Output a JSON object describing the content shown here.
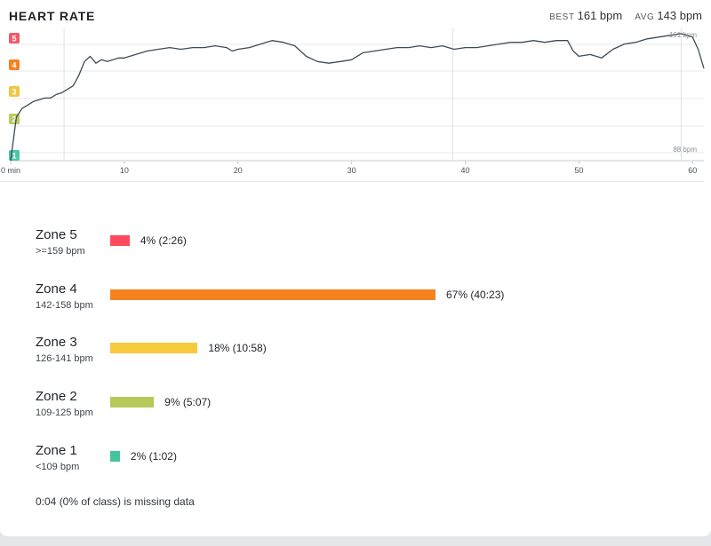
{
  "header": {
    "title": "HEART RATE",
    "best_label": "BEST",
    "best_value": "161 bpm",
    "avg_label": "AVG",
    "avg_value": "143 bpm"
  },
  "chart_data": [
    {
      "type": "line",
      "title": "HEART RATE",
      "xlabel": "",
      "ylabel": "",
      "x_ticks": [
        "0 min",
        "10",
        "20",
        "30",
        "40",
        "50",
        "60"
      ],
      "xlim": [
        0,
        61
      ],
      "ylim": [
        88,
        164
      ],
      "y_annotations": [
        "161 bpm",
        "88 bpm"
      ],
      "zone_badges": [
        "1",
        "2",
        "3",
        "4",
        "5"
      ],
      "zone_badge_colors": [
        "#4cc7a6",
        "#b7cc5e",
        "#f2c545",
        "#f5821f",
        "#f4596a"
      ],
      "zone_boundaries_bpm": [
        109,
        126,
        142,
        159
      ],
      "vertical_gridlines_min": [
        4.7,
        38.9,
        59.0
      ],
      "line_color": "#3f4a57",
      "series": [
        {
          "x": [
            0,
            0.5,
            1,
            1.5,
            2,
            2.5,
            3,
            3.5,
            4,
            4.5,
            5,
            5.5,
            6,
            6.5,
            7,
            7.5,
            8,
            8.5,
            9,
            9.5,
            10,
            11,
            12,
            13,
            14,
            15,
            16,
            17,
            18,
            19,
            19.5,
            20,
            21,
            22,
            23,
            24,
            25,
            26,
            27,
            28,
            29,
            30,
            31,
            32,
            33,
            34,
            35,
            36,
            37,
            38,
            39,
            40,
            41,
            42,
            43,
            44,
            45,
            46,
            47,
            48,
            49,
            49.5,
            50,
            51,
            52,
            53,
            54,
            55,
            56,
            57,
            58,
            59,
            59.5,
            60,
            60.5,
            61
          ],
          "y": [
            88,
            113,
            118,
            120,
            122,
            123,
            124,
            124,
            126,
            127,
            129,
            131,
            137,
            145,
            148,
            144,
            146,
            145,
            146,
            147,
            147,
            149,
            151,
            152,
            153,
            152,
            153,
            153,
            154,
            153,
            151,
            152,
            153,
            155,
            157,
            156,
            154,
            148,
            145,
            144,
            145,
            146,
            150,
            151,
            152,
            153,
            153,
            154,
            153,
            154,
            152,
            153,
            153,
            154,
            155,
            156,
            156,
            157,
            156,
            157,
            157,
            151,
            148,
            149,
            147,
            152,
            155,
            156,
            158,
            159,
            160,
            161,
            160,
            159,
            152,
            141
          ]
        }
      ]
    },
    {
      "type": "bar",
      "orientation": "horizontal",
      "categories": [
        "Zone 5",
        "Zone 4",
        "Zone 3",
        "Zone 2",
        "Zone 1"
      ],
      "ranges": [
        ">=159 bpm",
        "142-158 bpm",
        "126-141 bpm",
        "109-125 bpm",
        "<109 bpm"
      ],
      "values": [
        4,
        67,
        18,
        9,
        2
      ],
      "unit": "%",
      "data_labels": [
        "4% (2:26)",
        "67% (40:23)",
        "18% (10:58)",
        "9% (5:07)",
        "2% (1:02)"
      ],
      "colors": [
        "#fc4a5c",
        "#f5821f",
        "#f7ca3d",
        "#b7c85a",
        "#45c4a0"
      ],
      "xlim": [
        0,
        67
      ]
    }
  ],
  "footnote": "0:04 (0% of class) is missing data"
}
